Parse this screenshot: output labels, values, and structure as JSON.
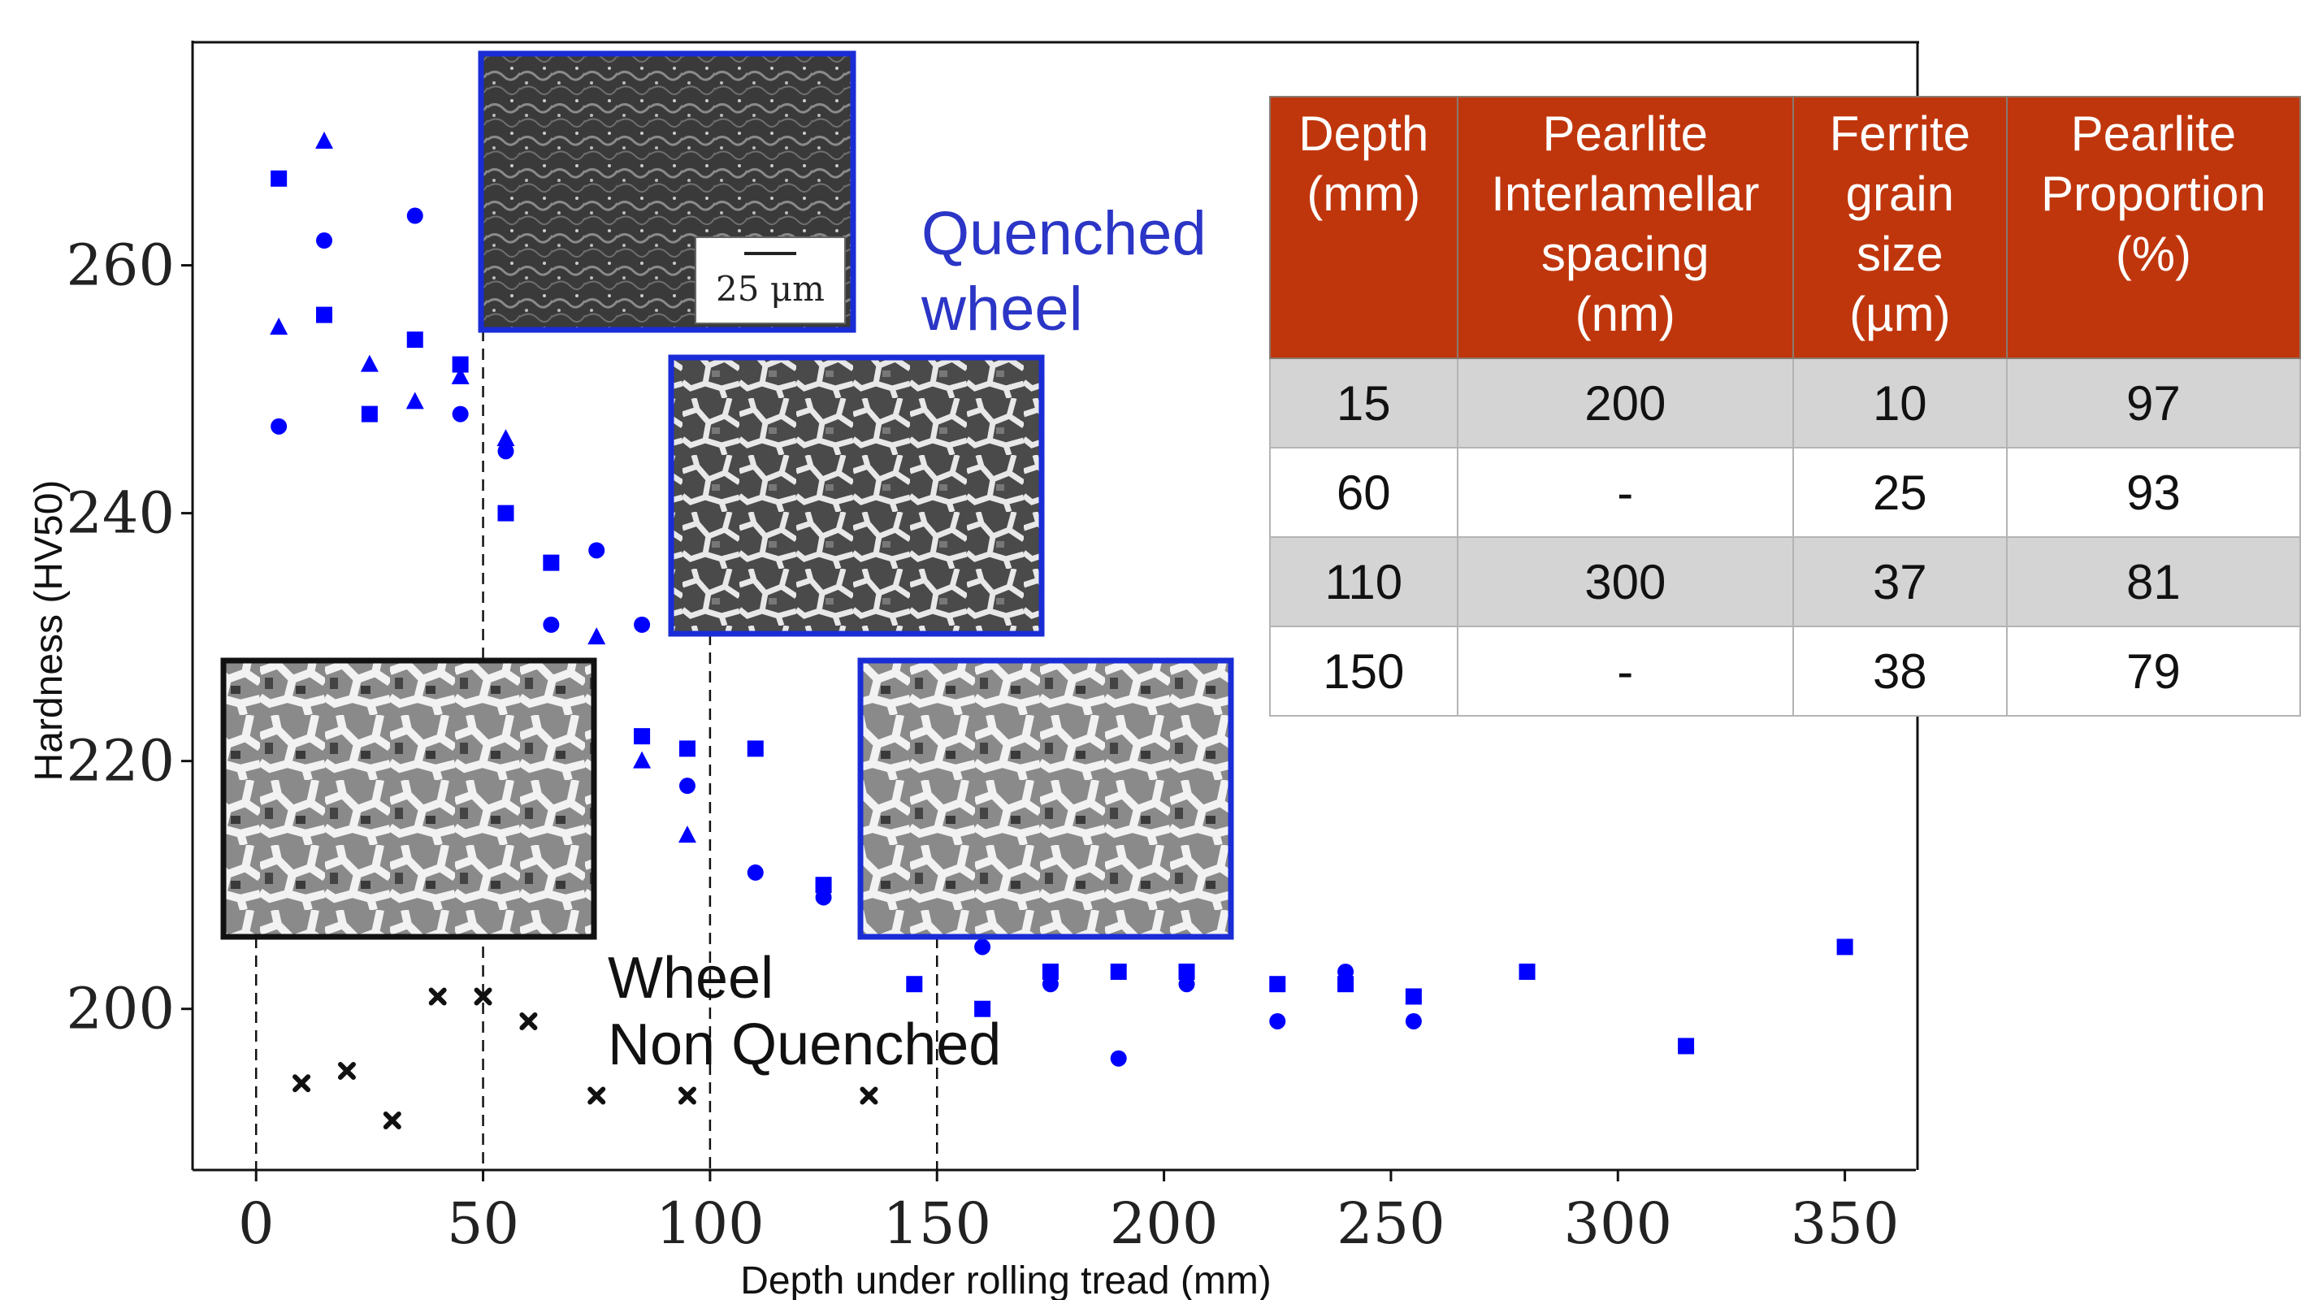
{
  "chart_data": {
    "type": "scatter",
    "xlabel": "Depth under rolling tread (mm)",
    "ylabel": "Hardness (HV50)",
    "xlim": [
      -14,
      366
    ],
    "ylim": [
      187,
      278
    ],
    "x_ticks": [
      "0",
      "50",
      "100",
      "150",
      "200",
      "250",
      "300",
      "350"
    ],
    "y_ticks": [
      "200",
      "220",
      "240",
      "260"
    ],
    "x_tick_values": [
      0,
      50,
      100,
      150,
      200,
      250,
      300,
      350
    ],
    "y_tick_values": [
      200,
      220,
      240,
      260
    ],
    "grid": false,
    "series": [
      {
        "marker": "square",
        "color": "#0000ff",
        "points": [
          [
            5,
            267
          ],
          [
            15,
            256
          ],
          [
            25,
            248
          ],
          [
            35,
            254
          ],
          [
            45,
            252
          ],
          [
            55,
            240
          ],
          [
            65,
            236
          ],
          [
            85,
            222
          ],
          [
            95,
            221
          ],
          [
            110,
            221
          ],
          [
            125,
            210
          ],
          [
            145,
            202
          ],
          [
            160,
            200
          ],
          [
            175,
            203
          ],
          [
            190,
            203
          ],
          [
            205,
            203
          ],
          [
            225,
            202
          ],
          [
            240,
            202
          ],
          [
            255,
            201
          ],
          [
            280,
            203
          ],
          [
            315,
            197
          ],
          [
            350,
            205
          ]
        ]
      },
      {
        "marker": "circle",
        "color": "#0000ff",
        "points": [
          [
            5,
            247
          ],
          [
            15,
            262
          ],
          [
            35,
            264
          ],
          [
            45,
            248
          ],
          [
            55,
            245
          ],
          [
            65,
            231
          ],
          [
            75,
            237
          ],
          [
            85,
            231
          ],
          [
            95,
            218
          ],
          [
            110,
            211
          ],
          [
            125,
            209
          ],
          [
            160,
            205
          ],
          [
            175,
            202
          ],
          [
            190,
            196
          ],
          [
            205,
            202
          ],
          [
            225,
            199
          ],
          [
            240,
            203
          ],
          [
            255,
            199
          ]
        ]
      },
      {
        "marker": "triangle",
        "color": "#0000ff",
        "points": [
          [
            5,
            255
          ],
          [
            15,
            270
          ],
          [
            25,
            252
          ],
          [
            35,
            249
          ],
          [
            45,
            251
          ],
          [
            55,
            246
          ],
          [
            75,
            230
          ],
          [
            85,
            220
          ],
          [
            95,
            214
          ]
        ]
      },
      {
        "marker": "x",
        "color": "#111111",
        "points": [
          [
            10,
            194
          ],
          [
            20,
            195
          ],
          [
            30,
            191
          ],
          [
            40,
            201
          ],
          [
            50,
            201
          ],
          [
            60,
            199
          ],
          [
            75,
            193
          ],
          [
            95,
            193
          ],
          [
            135,
            193
          ]
        ]
      }
    ],
    "annotations": {
      "quenched_line1": "Quenched",
      "quenched_line2": "wheel",
      "nonquenched_line1": "Wheel",
      "nonquenched_line2": "Non Quenched",
      "scale_bar": "25 μm"
    },
    "guide_lines_x": [
      0,
      50,
      100,
      150
    ],
    "colors": {
      "quenched": "#0000ff",
      "non_quenched": "#111111",
      "table_header": "#c0360c",
      "table_shade": "#d4d4d4"
    }
  },
  "table": {
    "headers": [
      [
        "Depth",
        "(mm)"
      ],
      [
        "Pearlite",
        "Interlamellar",
        "spacing",
        "(nm)"
      ],
      [
        "Ferrite",
        "grain",
        "size",
        "(µm)"
      ],
      [
        "Pearlite",
        "Proportion",
        "(%)"
      ]
    ],
    "rows": [
      [
        "15",
        "200",
        "10",
        "97"
      ],
      [
        "60",
        "-",
        "25",
        "93"
      ],
      [
        "110",
        "300",
        "37",
        "81"
      ],
      [
        "150",
        "-",
        "38",
        "79"
      ]
    ]
  }
}
